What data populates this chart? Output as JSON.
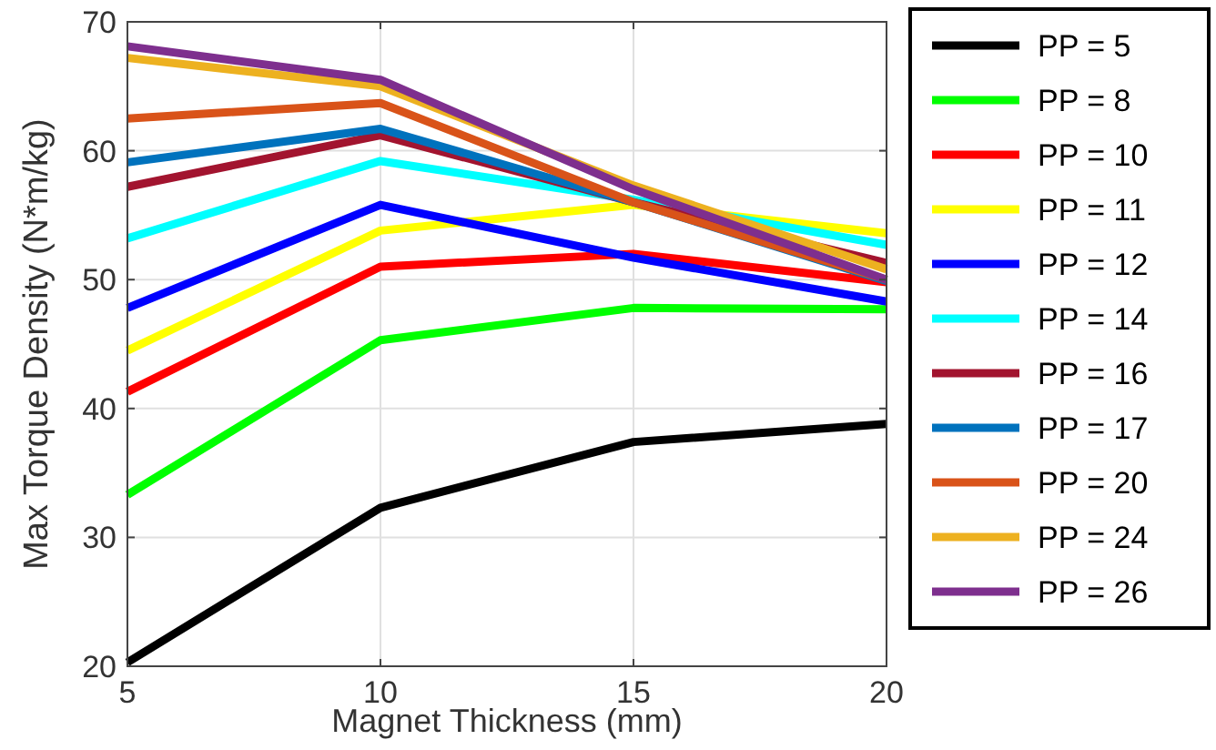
{
  "chart_data": {
    "type": "line",
    "xlabel": "Magnet Thickness (mm)",
    "ylabel": "Max Torque Density (N*m/kg)",
    "x": [
      5,
      10,
      15,
      20
    ],
    "xlim": [
      5,
      20
    ],
    "xticks": [
      5,
      10,
      15,
      20
    ],
    "ylim": [
      20,
      70
    ],
    "yticks": [
      20,
      30,
      40,
      50,
      60,
      70
    ],
    "grid": true,
    "legend": "right",
    "line_style": "solid",
    "series": [
      {
        "name": "PP = 5",
        "color": "#000000",
        "values": [
          20.3,
          32.3,
          37.4,
          38.8
        ]
      },
      {
        "name": "PP = 8",
        "color": "#00ff00",
        "values": [
          33.3,
          45.3,
          47.8,
          47.7
        ]
      },
      {
        "name": "PP = 10",
        "color": "#ff0000",
        "values": [
          41.3,
          51.0,
          52.0,
          49.8
        ]
      },
      {
        "name": "PP = 11",
        "color": "#ffff00",
        "values": [
          44.5,
          53.8,
          55.8,
          53.6
        ]
      },
      {
        "name": "PP = 12",
        "color": "#0000ff",
        "values": [
          47.8,
          55.8,
          51.7,
          48.3
        ]
      },
      {
        "name": "PP = 14",
        "color": "#00ffff",
        "values": [
          53.2,
          59.2,
          56.2,
          52.7
        ]
      },
      {
        "name": "PP = 16",
        "color": "#a2142f",
        "values": [
          57.2,
          61.2,
          56.0,
          51.3
        ]
      },
      {
        "name": "PP = 17",
        "color": "#0072bd",
        "values": [
          59.1,
          61.7,
          56.0,
          49.9
        ]
      },
      {
        "name": "PP = 20",
        "color": "#d95319",
        "values": [
          62.5,
          63.7,
          56.0,
          50.0
        ]
      },
      {
        "name": "PP = 24",
        "color": "#edb120",
        "values": [
          67.2,
          65.0,
          57.3,
          50.8
        ]
      },
      {
        "name": "PP = 26",
        "color": "#7e2f8e",
        "values": [
          68.1,
          65.5,
          57.0,
          50.0
        ]
      }
    ]
  }
}
